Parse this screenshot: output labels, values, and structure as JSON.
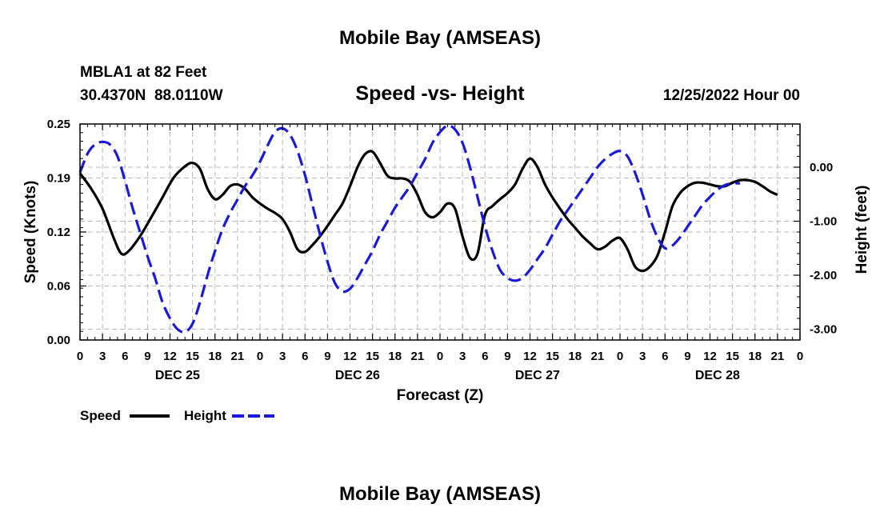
{
  "page": {
    "title": "Mobile Bay (AMSEAS)",
    "footer_title": "Mobile Bay (AMSEAS)"
  },
  "station": {
    "name": "MBLA1 at 82 Feet",
    "coords": "30.4370N  88.0110W"
  },
  "chart_data": {
    "type": "line",
    "title": "Speed -vs- Height",
    "date_label": "12/25/2022 Hour 00",
    "xlabel": "Forecast (Z)",
    "ylabel": "Speed (Knots)",
    "y2label": "Height (feet)",
    "xlim": [
      0,
      96
    ],
    "ylim": [
      0.0,
      0.25
    ],
    "y2lim": [
      -3.2,
      0.8
    ],
    "yticks": [
      "0.00",
      "0.06",
      "0.12",
      "0.19",
      "0.25"
    ],
    "ytick_values": [
      0.0,
      0.0625,
      0.125,
      0.1875,
      0.25
    ],
    "y2ticks": [
      "-3.00",
      "-2.00",
      "-1.00",
      "0.00"
    ],
    "y2tick_values": [
      -3,
      -2,
      -1,
      0
    ],
    "xtick_labels": [
      "0",
      "3",
      "6",
      "9",
      "12",
      "15",
      "18",
      "21",
      "0",
      "3",
      "6",
      "9",
      "12",
      "15",
      "18",
      "21",
      "0",
      "3",
      "6",
      "9",
      "12",
      "15",
      "18",
      "21",
      "0",
      "3",
      "6",
      "9",
      "12",
      "15",
      "18",
      "21",
      "0"
    ],
    "day_labels": [
      "DEC 25",
      "DEC 26",
      "DEC 27",
      "DEC 28"
    ],
    "grid": true,
    "series": [
      {
        "name": "Speed",
        "color": "#000000",
        "dash": "solid",
        "axis": "left",
        "points": [
          [
            0,
            0.193
          ],
          [
            1.5,
            0.175
          ],
          [
            3,
            0.152
          ],
          [
            4.5,
            0.118
          ],
          [
            5.5,
            0.1
          ],
          [
            6.5,
            0.103
          ],
          [
            8,
            0.12
          ],
          [
            9.5,
            0.142
          ],
          [
            11,
            0.165
          ],
          [
            12.5,
            0.188
          ],
          [
            14,
            0.201
          ],
          [
            15,
            0.205
          ],
          [
            16,
            0.198
          ],
          [
            17,
            0.175
          ],
          [
            18,
            0.163
          ],
          [
            19,
            0.168
          ],
          [
            20,
            0.178
          ],
          [
            21,
            0.18
          ],
          [
            22,
            0.175
          ],
          [
            23,
            0.165
          ],
          [
            24,
            0.158
          ],
          [
            25,
            0.152
          ],
          [
            26,
            0.147
          ],
          [
            27,
            0.14
          ],
          [
            28,
            0.125
          ],
          [
            29,
            0.105
          ],
          [
            30,
            0.102
          ],
          [
            31,
            0.11
          ],
          [
            32,
            0.12
          ],
          [
            33,
            0.132
          ],
          [
            34,
            0.145
          ],
          [
            35,
            0.158
          ],
          [
            36,
            0.178
          ],
          [
            37,
            0.2
          ],
          [
            38,
            0.215
          ],
          [
            39,
            0.218
          ],
          [
            40,
            0.205
          ],
          [
            41,
            0.19
          ],
          [
            42,
            0.187
          ],
          [
            43,
            0.187
          ],
          [
            44,
            0.183
          ],
          [
            45,
            0.168
          ],
          [
            46,
            0.148
          ],
          [
            47,
            0.142
          ],
          [
            48,
            0.148
          ],
          [
            49,
            0.158
          ],
          [
            50,
            0.152
          ],
          [
            51,
            0.12
          ],
          [
            52,
            0.095
          ],
          [
            53,
            0.1
          ],
          [
            54,
            0.145
          ],
          [
            55,
            0.155
          ],
          [
            56,
            0.163
          ],
          [
            57,
            0.17
          ],
          [
            58,
            0.18
          ],
          [
            59,
            0.198
          ],
          [
            60,
            0.21
          ],
          [
            61,
            0.2
          ],
          [
            62,
            0.18
          ],
          [
            63,
            0.165
          ],
          [
            64,
            0.152
          ],
          [
            65,
            0.14
          ],
          [
            66,
            0.13
          ],
          [
            67,
            0.12
          ],
          [
            68,
            0.112
          ],
          [
            69,
            0.105
          ],
          [
            70,
            0.108
          ],
          [
            71,
            0.115
          ],
          [
            72,
            0.118
          ],
          [
            73,
            0.105
          ],
          [
            74,
            0.085
          ],
          [
            75,
            0.08
          ],
          [
            76,
            0.085
          ],
          [
            77,
            0.098
          ],
          [
            78,
            0.125
          ],
          [
            79,
            0.155
          ],
          [
            80,
            0.17
          ],
          [
            81,
            0.178
          ],
          [
            82,
            0.182
          ],
          [
            83,
            0.182
          ],
          [
            84,
            0.18
          ],
          [
            85,
            0.178
          ],
          [
            86,
            0.178
          ],
          [
            87,
            0.182
          ],
          [
            88,
            0.185
          ],
          [
            89,
            0.185
          ],
          [
            90,
            0.183
          ],
          [
            91,
            0.178
          ],
          [
            92,
            0.172
          ],
          [
            93,
            0.168
          ]
        ]
      },
      {
        "name": "Height",
        "color": "#1a1adb",
        "dash": "dashed",
        "axis": "right",
        "points": [
          [
            0,
            -0.1
          ],
          [
            1,
            0.25
          ],
          [
            2,
            0.42
          ],
          [
            3,
            0.47
          ],
          [
            4,
            0.42
          ],
          [
            5,
            0.2
          ],
          [
            6,
            -0.25
          ],
          [
            7,
            -0.75
          ],
          [
            8,
            -1.2
          ],
          [
            9,
            -1.65
          ],
          [
            10,
            -2.05
          ],
          [
            11,
            -2.5
          ],
          [
            12,
            -2.8
          ],
          [
            13,
            -3.0
          ],
          [
            14,
            -3.05
          ],
          [
            15,
            -2.9
          ],
          [
            16,
            -2.5
          ],
          [
            17,
            -2.0
          ],
          [
            18,
            -1.55
          ],
          [
            19,
            -1.15
          ],
          [
            20,
            -0.85
          ],
          [
            21,
            -0.6
          ],
          [
            22,
            -0.35
          ],
          [
            23,
            -0.15
          ],
          [
            24,
            0.1
          ],
          [
            25,
            0.4
          ],
          [
            26,
            0.65
          ],
          [
            27,
            0.72
          ],
          [
            28,
            0.6
          ],
          [
            29,
            0.3
          ],
          [
            30,
            -0.15
          ],
          [
            31,
            -0.7
          ],
          [
            32,
            -1.25
          ],
          [
            33,
            -1.75
          ],
          [
            34,
            -2.15
          ],
          [
            35,
            -2.3
          ],
          [
            36,
            -2.25
          ],
          [
            37,
            -2.05
          ],
          [
            38,
            -1.8
          ],
          [
            39,
            -1.55
          ],
          [
            40,
            -1.25
          ],
          [
            41,
            -1.0
          ],
          [
            42,
            -0.75
          ],
          [
            43,
            -0.55
          ],
          [
            44,
            -0.35
          ],
          [
            45,
            -0.1
          ],
          [
            46,
            0.15
          ],
          [
            47,
            0.45
          ],
          [
            48,
            0.65
          ],
          [
            49,
            0.77
          ],
          [
            50,
            0.7
          ],
          [
            51,
            0.45
          ],
          [
            52,
            0.0
          ],
          [
            53,
            -0.55
          ],
          [
            54,
            -1.1
          ],
          [
            55,
            -1.55
          ],
          [
            56,
            -1.9
          ],
          [
            57,
            -2.05
          ],
          [
            58,
            -2.1
          ],
          [
            59,
            -2.05
          ],
          [
            60,
            -1.9
          ],
          [
            61,
            -1.7
          ],
          [
            62,
            -1.5
          ],
          [
            63,
            -1.25
          ],
          [
            64,
            -1.0
          ],
          [
            65,
            -0.8
          ],
          [
            66,
            -0.6
          ],
          [
            67,
            -0.4
          ],
          [
            68,
            -0.2
          ],
          [
            69,
            0.0
          ],
          [
            70,
            0.15
          ],
          [
            71,
            0.25
          ],
          [
            72,
            0.3
          ],
          [
            73,
            0.2
          ],
          [
            74,
            -0.1
          ],
          [
            75,
            -0.5
          ],
          [
            76,
            -0.95
          ],
          [
            77,
            -1.3
          ],
          [
            78,
            -1.5
          ],
          [
            79,
            -1.45
          ],
          [
            80,
            -1.3
          ],
          [
            81,
            -1.1
          ],
          [
            82,
            -0.9
          ],
          [
            83,
            -0.7
          ],
          [
            84,
            -0.55
          ],
          [
            85,
            -0.42
          ],
          [
            86,
            -0.33
          ],
          [
            87,
            -0.3
          ],
          [
            88,
            -0.3
          ]
        ]
      }
    ],
    "legend": [
      {
        "label": "Speed",
        "color": "#000000",
        "dash": "solid"
      },
      {
        "label": "Height",
        "color": "#1a1adb",
        "dash": "dashed"
      }
    ],
    "legend_position": "bottom-left"
  }
}
